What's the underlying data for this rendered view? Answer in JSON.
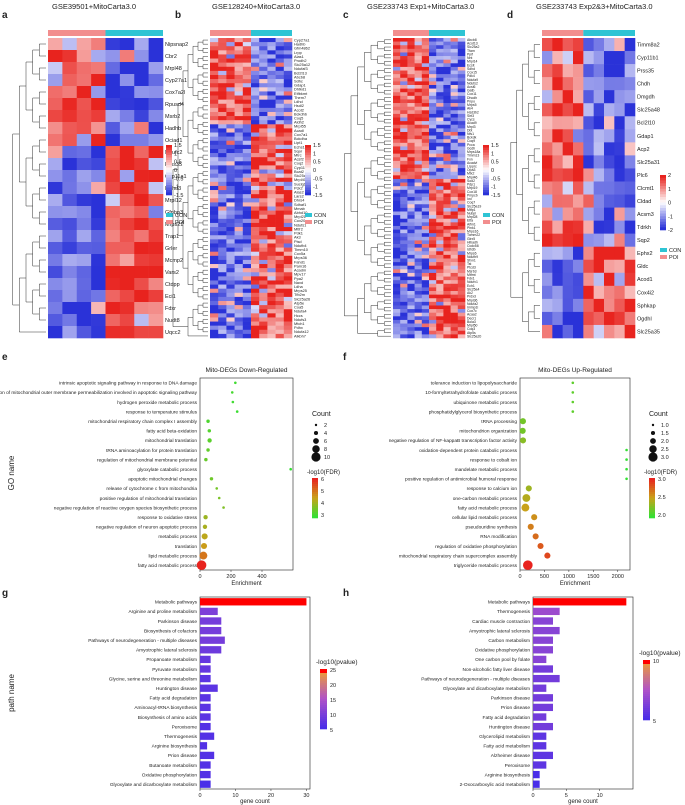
{
  "colors": {
    "con": "#2ec4d4",
    "poi": "#f28e8e",
    "hot": "#e8231e",
    "cold": "#2a32d8",
    "bar_top": "#ff0000"
  },
  "panel_letters": [
    "a",
    "b",
    "c",
    "d",
    "e",
    "f",
    "g",
    "h"
  ],
  "axis_labels": {
    "go": "GO name",
    "path": "path name"
  },
  "chart_data": [
    {
      "id": "a",
      "type": "heatmap",
      "title": "GSE39501+MitoCarta3.0",
      "genes": [
        "Nipsnap2",
        "Cbr2",
        "Mrpl48",
        "Cyp27a1",
        "Cox7a2l",
        "Rpusd4",
        "Msrb2",
        "Hadhb",
        "Ociad1",
        "Ndufc2",
        "Prss35",
        "Cyp11a1",
        "Hdhd3",
        "Mrpl12",
        "Gfpbp3",
        "Mrps21",
        "Trap1",
        "Grler",
        "Mcmp2",
        "Vars2",
        "Ctdpp",
        "Eci1",
        "Fdxr",
        "Nudt8",
        "Uqcc2"
      ],
      "scale_ticks": [
        "1.5",
        "1",
        "0.5",
        "0",
        "-0.5",
        "-1",
        "-1.5"
      ],
      "legend": [
        "CON",
        "POI"
      ]
    },
    {
      "id": "b",
      "type": "heatmap",
      "title": "GSE128240+MitoCarta3.0",
      "genes": [
        "Cyp27a1",
        "Hadhb",
        "Gfm4862",
        "Lrpp",
        "Alas1",
        "Prodh2",
        "Slc25a12",
        "Ndufaf3",
        "Bcl2l13",
        "Abcb8",
        "Sdhc",
        "Gdap1",
        "Dhtkd1",
        "Etfbkmt",
        "Them7",
        "Ldhd",
        "Hsdl2",
        "Acot2",
        "Bckdhb",
        "Coq5",
        "Aldh2",
        "Mrpl55",
        "Acadl",
        "Cox7a1",
        "Bckdha",
        "Lipt1",
        "Echs1",
        "Sqor",
        "Mtrc",
        "Acsf2",
        "Coq2",
        "Cyp11b1",
        "Bcat2",
        "Slc25a35",
        "Mrpl40",
        "Suclg1",
        "Pck2",
        "Alas2",
        "Lars2",
        "Dhrs4",
        "Sdhaf1",
        "Mmab",
        "Abhd10",
        "Mrpl21",
        "Cox20",
        "Ndufs1",
        "Mtfr2",
        "Pdk1",
        "Ak3",
        "Pisd",
        "Ndufb4",
        "Timm10",
        "Cox5a",
        "Mrps36",
        "Fahd1",
        "Pam16",
        "Acadm",
        "Mpv17",
        "Ppa2",
        "Naxd",
        "Ldha",
        "Mrps25",
        "Tfb2m",
        "Slc25a26",
        "Atp5e",
        "Coa5",
        "Ndufa4",
        "Hccs",
        "Ndufs3",
        "Mtch1",
        "Pdhx",
        "Ndufa12",
        "Alkbh7"
      ],
      "scale_ticks": [
        "1.5",
        "1",
        "0.5",
        "0",
        "-0.5",
        "-1",
        "-1.5"
      ],
      "legend": [
        "CON",
        "POI"
      ]
    },
    {
      "id": "c",
      "type": "heatmap",
      "title": "GSE233743 Exp1+MitoCarta3.0",
      "genes": [
        "Abcb8",
        "Acot13",
        "Slc25a2",
        "Tfam",
        "Ppif",
        "Nnt",
        "Mrpl14",
        "Ecsit",
        "Sdhd",
        "Cox15",
        "Pdk4",
        "Ndufa9",
        "Ndufs2",
        "Acsl6",
        "Gatb",
        "Cox11",
        "Dhodh",
        "Pnpo",
        "Mrps5",
        "Ak4",
        "Hsd3b2",
        "Sirt3",
        "Cycs",
        "Acad9",
        "Mrpl3",
        "Dbt",
        "Nfs1",
        "Bckdk",
        "Coq9",
        "Pcca",
        "Gcdh",
        "Mrps18a",
        "Timm13",
        "Fxn",
        "Acadvl",
        "Lrpprc",
        "Opa3",
        "Mtx2",
        "Mrpl46",
        "Sod2",
        "Pdp1",
        "Mrpl19",
        "Cox18",
        "Pmpcb",
        "Ivd",
        "Coq7",
        "Slc25a19",
        "Mtfp1",
        "Nubpl",
        "Mrpl28",
        "Etfa",
        "Aifm1",
        "Pink1",
        "Mrps16",
        "Tomm22",
        "Glrx5",
        "Hibadh",
        "Ccdc58",
        "Idh3b",
        "Mrps6",
        "Ndufb9",
        "Sfxn1",
        "Tst",
        "Ptcd3",
        "Msrb3",
        "Mtfmt",
        "Fdx1",
        "Ndufv1",
        "Ech1",
        "Slc25a4",
        "Ak2",
        "Prdx3",
        "Mrpl36",
        "Ndufa2",
        "Immp1l",
        "Cox7c",
        "Acaa2",
        "Decr1",
        "Bola3",
        "Mrpl50",
        "Coq3",
        "Atp5s",
        "Slc25a20"
      ],
      "scale_ticks": [
        "1.5",
        "1",
        "0.5",
        "0",
        "-0.5",
        "-1",
        "-1.5"
      ],
      "legend": [
        "CON",
        "POI"
      ]
    },
    {
      "id": "d",
      "type": "heatmap",
      "title": "GSE233743 Exp2&3+MitoCarta3.0",
      "genes": [
        "Timm8a2",
        "Cyp11b1",
        "Prss35",
        "Chdh",
        "Dmgdh",
        "Slc25a48",
        "Bcl2l10",
        "Gdap1",
        "Acp2",
        "Slc25a31",
        "Plc6",
        "Clcmt1",
        "Cldad",
        "Acsm3",
        "Tdrkh",
        "Sqp2",
        "Ephx2",
        "Gldc",
        "Acod1",
        "Cox4i2",
        "Sphkap",
        "Ogdhl",
        "Slc25a35"
      ],
      "scale_ticks": [
        "2",
        "1",
        "0",
        "-1",
        "-2"
      ],
      "legend": [
        "CON",
        "POI"
      ]
    },
    {
      "id": "e",
      "type": "scatter",
      "title": "Mito-DEGs Down-Regulated",
      "xlabel": "Enrichment",
      "xlim": [
        0,
        600
      ],
      "xticks": [
        "0",
        "200",
        "400"
      ],
      "terms": [
        "intrinsic apoptotic signaling pathway in response to DNA damage",
        "positive regulation of mitochondrial outer membrane permeabilization involved in apoptotic signaling pathway",
        "hydrogen peroxide metabolic process",
        "response to temperature stimulus",
        "mitochondrial respiratory chain complex I assembly",
        "fatty acid beta-oxidation",
        "mitochondrial translation",
        "tRNA aminoacylation for protein translation",
        "regulation of mitochondrial membrane potential",
        "glyoxylate catabolic process",
        "apoptotic mitochondrial changes",
        "release of cytochrome c from mitochondria",
        "positive regulation of mitochondrial translation",
        "negative regulation of reactive oxygen species biosynthetic process",
        "response to oxidative stress",
        "negative regulation of neuron apoptotic process",
        "metabolic process",
        "translation",
        "lipid metabolic process",
        "fatty acid metabolic process"
      ],
      "enrichment": [
        228,
        208,
        212,
        240,
        52,
        60,
        62,
        52,
        38,
        585,
        74,
        108,
        124,
        152,
        36,
        32,
        30,
        26,
        22,
        10
      ],
      "count": [
        2,
        2,
        2,
        2,
        3,
        3,
        4,
        3,
        3,
        2,
        3,
        2,
        2,
        2,
        4,
        4,
        6,
        6,
        8,
        10
      ],
      "neglog10fdr": [
        2.6,
        2.7,
        2.6,
        2.5,
        2.8,
        2.9,
        3.0,
        3.1,
        3.2,
        2.4,
        3.3,
        3.4,
        3.5,
        3.6,
        4.0,
        4.2,
        4.5,
        4.8,
        5.5,
        7.0
      ],
      "size_title": "Count",
      "size_ticks": [
        "2",
        "4",
        "6",
        "8",
        "10"
      ],
      "color_title": "-log10(FDR)",
      "color_ticks": [
        "6",
        "5",
        "4",
        "3"
      ]
    },
    {
      "id": "f",
      "type": "scatter",
      "title": "Mito-DEGs Up-Regulated",
      "xlabel": "Enrichment",
      "xlim": [
        0,
        2250
      ],
      "xticks": [
        "0",
        "500",
        "1000",
        "1500",
        "2000"
      ],
      "terms": [
        "tolerance induction to lipopolysaccharide",
        "10-formyltetrahydrofolate catabolic process",
        "ubiquinone metabolic process",
        "phosphatidylglycerol biosynthetic process",
        "tRNA processing",
        "mitochondrion organization",
        "negative regulation of NF-kappaB transcription factor activity",
        "oxidation-dependent protein catabolic process",
        "response to cobalt ion",
        "mandelate metabolic process",
        "positive regulation of antimicrobial humoral response",
        "response to calcium ion",
        "one-carbon metabolic process",
        "fatty acid metabolic process",
        "cellular lipid metabolic process",
        "pseudouridine synthesis",
        "RNA modification",
        "regulation of oxidative phosphorylation",
        "mitochondrial respiratory chain supercomplex assembly",
        "triglyceride metabolic process"
      ],
      "enrichment": [
        1080,
        1080,
        1080,
        1080,
        60,
        55,
        62,
        2180,
        2180,
        2180,
        2180,
        180,
        130,
        110,
        290,
        220,
        320,
        420,
        560,
        160
      ],
      "count": [
        1.0,
        1.0,
        1.0,
        1.0,
        2.0,
        2.0,
        2.0,
        1.0,
        1.0,
        1.0,
        1.0,
        2.0,
        2.5,
        2.5,
        2.0,
        2.0,
        2.0,
        2.0,
        2.0,
        3.0
      ],
      "neglog10fdr": [
        2.2,
        2.2,
        2.2,
        2.2,
        2.3,
        2.3,
        2.4,
        2.0,
        2.0,
        2.0,
        2.0,
        2.5,
        2.6,
        2.7,
        2.8,
        2.9,
        3.0,
        3.1,
        3.2,
        3.4
      ],
      "size_title": "Count",
      "size_ticks": [
        "1.0",
        "1.5",
        "2.0",
        "2.5",
        "3.0"
      ],
      "color_title": "-log10(FDR)",
      "color_ticks": [
        "3.0",
        "2.5",
        "2.0"
      ]
    },
    {
      "id": "g",
      "type": "bar",
      "xlabel": "gene count",
      "xlim": [
        0,
        31
      ],
      "xticks": [
        "0",
        "10",
        "20",
        "30"
      ],
      "categories": [
        "Metabolic pathways",
        "Arginine and proline metabolism",
        "Parkinson disease",
        "Biosynthesis of cofactors",
        "Pathways of neurodegeneration - multiple diseases",
        "Amyotrophic lateral sclerosis",
        "Propanoate metabolism",
        "Pyruvate metabolism",
        "Glycine, serine and threonine metabolism",
        "Huntington disease",
        "Fatty acid degradation",
        "Aminoacyl-tRNA biosynthesis",
        "Biosynthesis of amino acids",
        "Peroxisome",
        "Thermogenesis",
        "Arginine biosynthesis",
        "Prion disease",
        "Butanoate metabolism",
        "Oxidative phosphorylation",
        "Glyoxylate and dicarboxylate metabolism"
      ],
      "values": [
        30,
        5,
        6,
        6,
        7,
        6,
        3,
        3,
        3,
        5,
        3,
        3,
        3,
        3,
        4,
        2,
        4,
        3,
        3,
        3
      ],
      "neglog10p": [
        28,
        10,
        9,
        9,
        9,
        8,
        7,
        7,
        6,
        6,
        6,
        6,
        6,
        5,
        5,
        5,
        5,
        5,
        5,
        4
      ],
      "color_title": "-log10(pvalue)",
      "color_ticks": [
        "25",
        "20",
        "15",
        "10",
        "5"
      ]
    },
    {
      "id": "h",
      "type": "bar",
      "xlabel": "gene count",
      "xlim": [
        0,
        15
      ],
      "xticks": [
        "0",
        "5",
        "10"
      ],
      "categories": [
        "Metabolic pathways",
        "Thermogenesis",
        "Cardiac muscle contraction",
        "Amyotrophic lateral sclerosis",
        "Carbon metabolism",
        "Oxidative phosphorylation",
        "One carbon pool by folate",
        "Non-alcoholic fatty liver disease",
        "Pathways of neurodegeneration - multiple diseases",
        "Glyoxylate and dicarboxylate metabolism",
        "Parkinson disease",
        "Prion disease",
        "Fatty acid degradation",
        "Huntington disease",
        "Glycerolipid metabolism",
        "Fatty acid metabolism",
        "Alzheimer disease",
        "Peroxisome",
        "Arginine biosynthesis",
        "2-Oxocarboxylic acid metabolism"
      ],
      "values": [
        14,
        4,
        3,
        4,
        3,
        3,
        2,
        3,
        4,
        2,
        3,
        3,
        2,
        3,
        2,
        2,
        3,
        2,
        1,
        1
      ],
      "neglog10p": [
        13,
        7,
        6,
        6,
        6,
        6,
        6,
        5,
        5,
        5,
        5,
        5,
        5,
        5,
        4,
        4,
        4,
        4,
        3,
        3
      ],
      "color_title": "-log10(pvalue)",
      "color_ticks": [
        "10",
        "5"
      ]
    }
  ]
}
